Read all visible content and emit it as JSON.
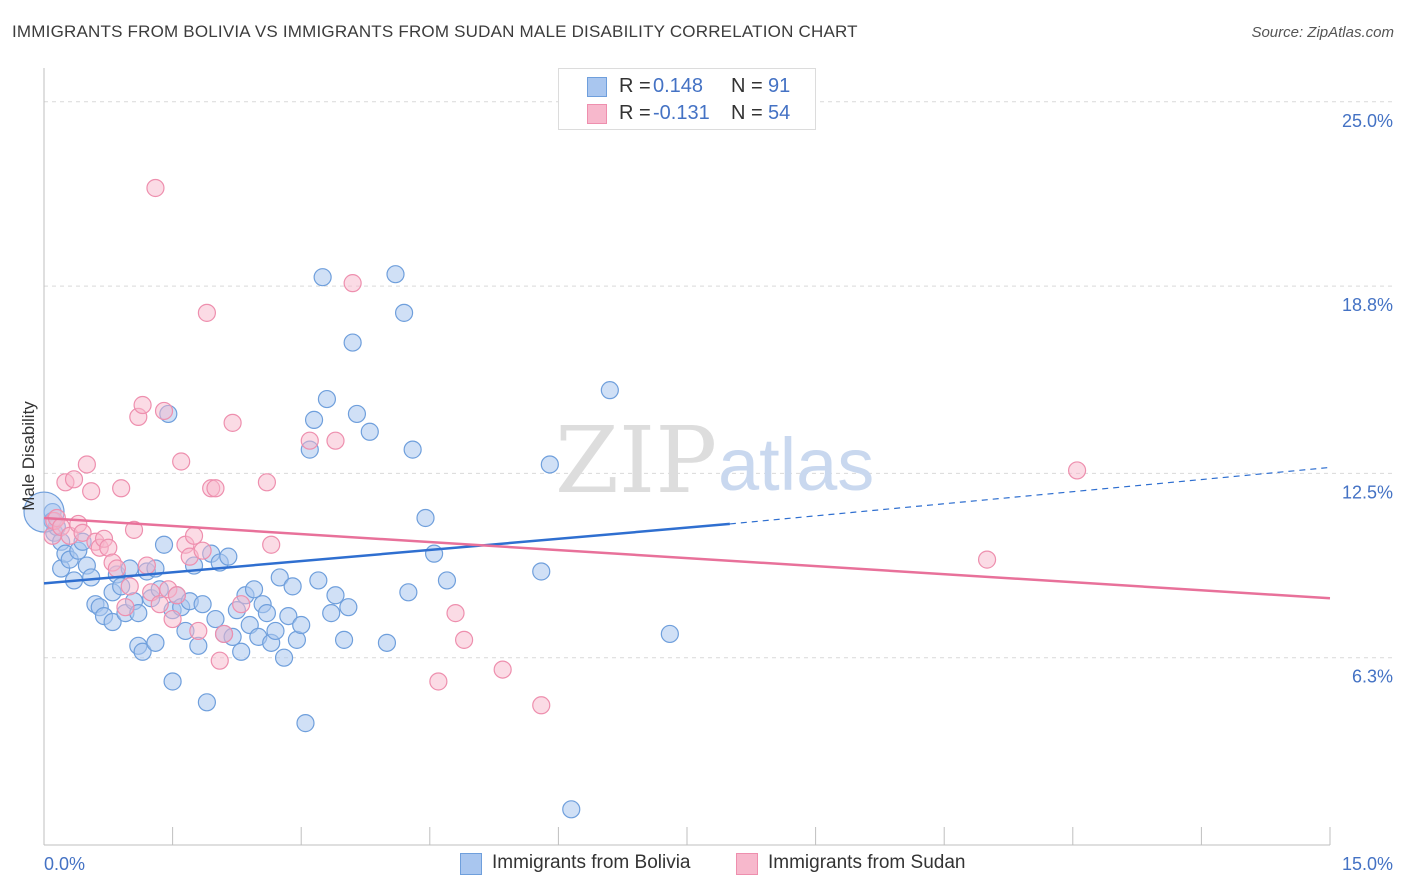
{
  "title": "IMMIGRANTS FROM BOLIVIA VS IMMIGRANTS FROM SUDAN MALE DISABILITY CORRELATION CHART",
  "source": "Source: ZipAtlas.com",
  "watermark": {
    "zip": "ZIP",
    "atlas": "atlas"
  },
  "colors": {
    "bolivia_fill": "#a9c6ef",
    "bolivia_stroke": "#6f9fdc",
    "bolivia_line": "#2f6fd0",
    "sudan_fill": "#f7b8cc",
    "sudan_stroke": "#ee8fae",
    "sudan_line": "#e8719a",
    "tick_text": "#4472c4",
    "grid": "#d9d9d9"
  },
  "legend_top": {
    "rows": [
      {
        "r_label": "R =",
        "r_value": "0.148",
        "n_label": "N =",
        "n_value": "91"
      },
      {
        "r_label": "R =",
        "r_value": "-0.131",
        "n_label": "N =",
        "n_value": "54"
      }
    ]
  },
  "legend_bottom": {
    "bolivia": "Immigrants from Bolivia",
    "sudan": "Immigrants from Sudan"
  },
  "chart_data": {
    "type": "scatter",
    "ylabel": "Male Disability",
    "xlim": [
      0,
      15
    ],
    "ylim": [
      0,
      25.8
    ],
    "x_tick_labels": [
      {
        "value": 0,
        "label": "0.0%"
      },
      {
        "value": 15,
        "label": "15.0%"
      }
    ],
    "y_ticks": [
      {
        "value": 6.3,
        "label": "6.3%"
      },
      {
        "value": 12.5,
        "label": "12.5%"
      },
      {
        "value": 18.8,
        "label": "18.8%"
      },
      {
        "value": 25.0,
        "label": "25.0%"
      }
    ],
    "x_minor_ticks": [
      0,
      1.5,
      3,
      4.5,
      6,
      7.5,
      9,
      10.5,
      12,
      13.5,
      15
    ],
    "grid": true,
    "series": [
      {
        "name": "Immigrants from Bolivia",
        "color": "#6f9fdc",
        "points": [
          [
            0.1,
            11.2
          ],
          [
            0.1,
            10.9
          ],
          [
            0.12,
            10.5
          ],
          [
            0.15,
            10.7
          ],
          [
            0.2,
            10.2
          ],
          [
            0.2,
            9.3
          ],
          [
            0.25,
            9.8
          ],
          [
            0.3,
            9.6
          ],
          [
            0.35,
            8.9
          ],
          [
            0.4,
            9.9
          ],
          [
            0.45,
            10.2
          ],
          [
            0.5,
            9.4
          ],
          [
            0.55,
            9.0
          ],
          [
            0.6,
            8.1
          ],
          [
            0.65,
            8.0
          ],
          [
            0.7,
            7.7
          ],
          [
            0.8,
            8.5
          ],
          [
            0.8,
            7.5
          ],
          [
            0.85,
            9.1
          ],
          [
            0.9,
            8.7
          ],
          [
            0.95,
            7.8
          ],
          [
            1.0,
            9.3
          ],
          [
            1.05,
            8.2
          ],
          [
            1.1,
            7.8
          ],
          [
            1.1,
            6.7
          ],
          [
            1.15,
            6.5
          ],
          [
            1.2,
            9.2
          ],
          [
            1.25,
            8.3
          ],
          [
            1.3,
            6.8
          ],
          [
            1.3,
            9.3
          ],
          [
            1.35,
            8.6
          ],
          [
            1.4,
            10.1
          ],
          [
            1.45,
            14.5
          ],
          [
            1.5,
            7.9
          ],
          [
            1.5,
            5.5
          ],
          [
            1.55,
            8.4
          ],
          [
            1.6,
            8.0
          ],
          [
            1.65,
            7.2
          ],
          [
            1.7,
            8.2
          ],
          [
            1.75,
            9.4
          ],
          [
            1.8,
            6.7
          ],
          [
            1.85,
            8.1
          ],
          [
            1.9,
            4.8
          ],
          [
            1.95,
            9.8
          ],
          [
            2.0,
            7.6
          ],
          [
            2.05,
            9.5
          ],
          [
            2.1,
            7.1
          ],
          [
            2.15,
            9.7
          ],
          [
            2.2,
            7.0
          ],
          [
            2.25,
            7.9
          ],
          [
            2.3,
            6.5
          ],
          [
            2.35,
            8.4
          ],
          [
            2.4,
            7.4
          ],
          [
            2.45,
            8.6
          ],
          [
            2.5,
            7.0
          ],
          [
            2.55,
            8.1
          ],
          [
            2.6,
            7.8
          ],
          [
            2.65,
            6.8
          ],
          [
            2.7,
            7.2
          ],
          [
            2.75,
            9.0
          ],
          [
            2.8,
            6.3
          ],
          [
            2.85,
            7.7
          ],
          [
            2.9,
            8.7
          ],
          [
            2.95,
            6.9
          ],
          [
            3.0,
            7.4
          ],
          [
            3.05,
            4.1
          ],
          [
            3.1,
            13.3
          ],
          [
            3.15,
            14.3
          ],
          [
            3.2,
            8.9
          ],
          [
            3.25,
            19.1
          ],
          [
            3.3,
            15.0
          ],
          [
            3.35,
            7.8
          ],
          [
            3.4,
            8.4
          ],
          [
            3.5,
            6.9
          ],
          [
            3.55,
            8.0
          ],
          [
            3.6,
            16.9
          ],
          [
            3.65,
            14.5
          ],
          [
            3.8,
            13.9
          ],
          [
            4.0,
            6.8
          ],
          [
            4.1,
            19.2
          ],
          [
            4.2,
            17.9
          ],
          [
            4.25,
            8.5
          ],
          [
            4.3,
            13.3
          ],
          [
            4.45,
            11.0
          ],
          [
            4.55,
            9.8
          ],
          [
            4.7,
            8.9
          ],
          [
            5.8,
            9.2
          ],
          [
            5.9,
            12.8
          ],
          [
            6.15,
            1.2
          ],
          [
            6.6,
            15.3
          ],
          [
            7.3,
            7.1
          ]
        ]
      },
      {
        "name": "Immigrants from Sudan",
        "color": "#ee8fae",
        "points": [
          [
            0.1,
            10.4
          ],
          [
            0.12,
            10.9
          ],
          [
            0.15,
            11.0
          ],
          [
            0.2,
            10.7
          ],
          [
            0.25,
            12.2
          ],
          [
            0.3,
            10.4
          ],
          [
            0.35,
            12.3
          ],
          [
            0.4,
            10.8
          ],
          [
            0.45,
            10.5
          ],
          [
            0.5,
            12.8
          ],
          [
            0.55,
            11.9
          ],
          [
            0.6,
            10.2
          ],
          [
            0.65,
            10.0
          ],
          [
            0.7,
            10.3
          ],
          [
            0.75,
            10.0
          ],
          [
            0.8,
            9.5
          ],
          [
            0.85,
            9.3
          ],
          [
            0.9,
            12.0
          ],
          [
            0.95,
            8.0
          ],
          [
            1.0,
            8.7
          ],
          [
            1.05,
            10.6
          ],
          [
            1.1,
            14.4
          ],
          [
            1.15,
            14.8
          ],
          [
            1.2,
            9.4
          ],
          [
            1.25,
            8.5
          ],
          [
            1.3,
            22.1
          ],
          [
            1.35,
            8.1
          ],
          [
            1.4,
            14.6
          ],
          [
            1.45,
            8.6
          ],
          [
            1.5,
            7.6
          ],
          [
            1.55,
            8.4
          ],
          [
            1.6,
            12.9
          ],
          [
            1.65,
            10.1
          ],
          [
            1.7,
            9.7
          ],
          [
            1.75,
            10.4
          ],
          [
            1.8,
            7.2
          ],
          [
            1.85,
            9.9
          ],
          [
            1.9,
            17.9
          ],
          [
            1.95,
            12.0
          ],
          [
            2.0,
            12.0
          ],
          [
            2.05,
            6.2
          ],
          [
            2.1,
            7.1
          ],
          [
            2.2,
            14.2
          ],
          [
            2.3,
            8.1
          ],
          [
            2.6,
            12.2
          ],
          [
            2.65,
            10.1
          ],
          [
            3.1,
            13.6
          ],
          [
            3.4,
            13.6
          ],
          [
            3.6,
            18.9
          ],
          [
            4.6,
            5.5
          ],
          [
            4.8,
            7.8
          ],
          [
            4.9,
            6.9
          ],
          [
            5.35,
            5.9
          ],
          [
            5.8,
            4.7
          ]
        ]
      }
    ],
    "trend_lines": [
      {
        "series": "Immigrants from Bolivia",
        "x": [
          0,
          8.0
        ],
        "y": [
          8.8,
          10.8
        ],
        "dashed_extension": {
          "x": [
            8.0,
            15
          ],
          "y": [
            10.8,
            12.7
          ]
        }
      },
      {
        "series": "Immigrants from Sudan",
        "x": [
          0,
          15
        ],
        "y": [
          11.0,
          8.3
        ]
      }
    ],
    "extra_points": [
      {
        "series": "Immigrants from Sudan",
        "x": 11.0,
        "y": 9.6
      },
      {
        "series": "Immigrants from Sudan",
        "x": 12.05,
        "y": 12.6
      }
    ]
  }
}
